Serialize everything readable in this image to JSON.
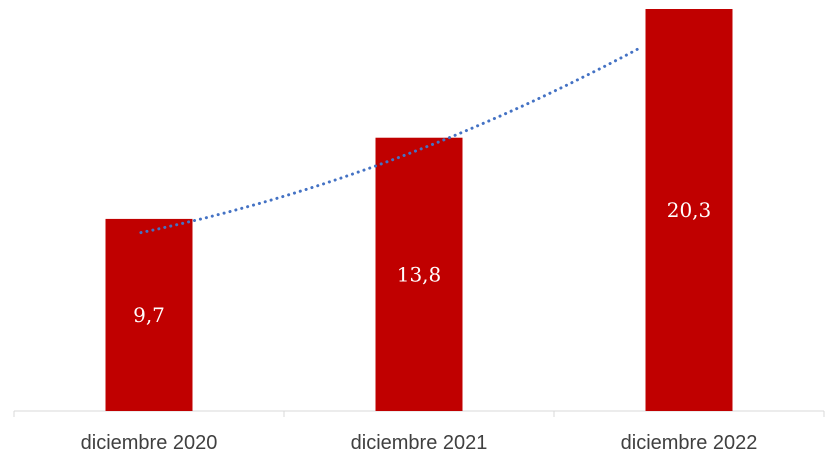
{
  "chart_data": {
    "type": "bar",
    "categories": [
      "diciembre 2020",
      "diciembre 2021",
      "diciembre 2022"
    ],
    "values": [
      9.7,
      13.8,
      20.3
    ],
    "data_labels": [
      "9,7",
      "13,8",
      "20,3"
    ],
    "ylim": [
      0,
      20.3
    ],
    "grid": false,
    "legend": "none",
    "trendline": {
      "style": "dotted",
      "kind": "polynomial"
    },
    "colors": {
      "bar": "#C00000",
      "trendline": "#4472C4",
      "axis": "#D9D9D9",
      "text": "#404040"
    }
  }
}
